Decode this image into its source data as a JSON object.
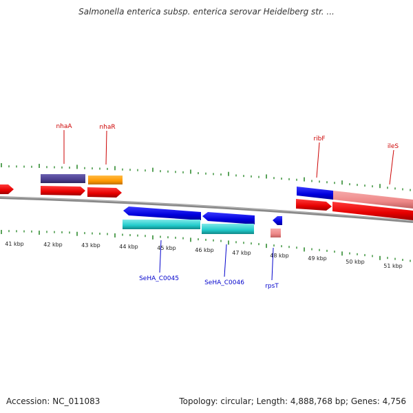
{
  "header": {
    "title": "Salmonella enterica subsp. enterica serovar Heidelberg str. ..."
  },
  "footer": {
    "accession": "Accession: NC_011083",
    "summary": "Topology: circular; Length: 4,888,768 bp; Genes: 4,756"
  },
  "map": {
    "scale_labels": [
      "41 kbp",
      "42 kbp",
      "43 kbp",
      "44 kbp",
      "45 kbp",
      "46 kbp",
      "47 kbp",
      "48 kbp",
      "49 kbp",
      "50 kbp",
      "51 kbp"
    ],
    "top_gene_labels": [
      "nhaA",
      "nhaR",
      "ribF",
      "ileS"
    ],
    "bottom_gene_labels": [
      "SeHA_C0045",
      "SeHA_C0046",
      "rpsT"
    ],
    "colors": {
      "cds_red": "#e60000",
      "gene_blue": "#0000dd",
      "gene_cyan": "#22cccc",
      "gene_purple": "#4b3f8f",
      "gene_orange": "#ff9900",
      "gene_pink": "#ee8888",
      "tick_green": "#2e8b2e",
      "top_label_color": "#cc0000",
      "bottom_label_color": "#0000cc",
      "backbone": "#777777"
    }
  }
}
